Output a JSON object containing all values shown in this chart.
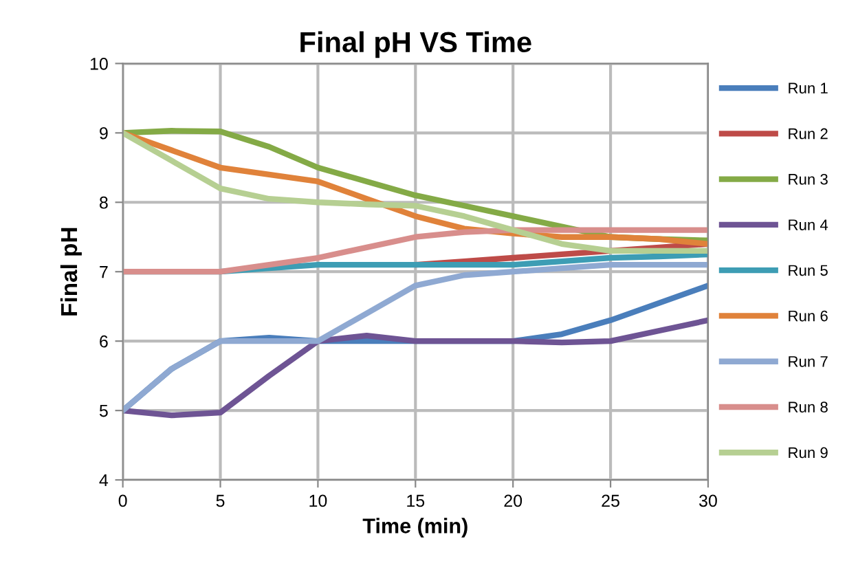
{
  "chart_data": {
    "type": "line",
    "title": "Final pH VS Time",
    "xlabel": "Time (min)",
    "ylabel": "Final pH",
    "x": [
      0,
      2.5,
      5,
      7.5,
      10,
      12.5,
      15,
      17.5,
      20,
      22.5,
      25,
      27.5,
      30
    ],
    "series": [
      {
        "name": "Run 1",
        "color": "#4a7ebb",
        "values": [
          5,
          5.6,
          6.0,
          6.05,
          6.0,
          6.0,
          6.0,
          6.0,
          6.0,
          6.1,
          6.3,
          6.55,
          6.8
        ]
      },
      {
        "name": "Run 2",
        "color": "#be4b48",
        "values": [
          null,
          null,
          null,
          null,
          null,
          null,
          7.1,
          7.15,
          7.2,
          7.25,
          7.3,
          7.35,
          7.4
        ]
      },
      {
        "name": "Run 3",
        "color": "#84aa46",
        "values": [
          9,
          9.03,
          9.02,
          8.8,
          8.5,
          8.3,
          8.1,
          7.95,
          7.8,
          7.65,
          7.5,
          7.47,
          7.45
        ]
      },
      {
        "name": "Run 4",
        "color": "#6e5494",
        "values": [
          5,
          4.93,
          4.97,
          5.5,
          6.0,
          6.08,
          6.0,
          6.0,
          6.0,
          5.98,
          6.0,
          6.15,
          6.3
        ]
      },
      {
        "name": "Run 5",
        "color": "#3d9db4",
        "values": [
          7,
          7,
          7,
          7.05,
          7.1,
          7.1,
          7.1,
          7.1,
          7.1,
          7.15,
          7.2,
          7.22,
          7.25
        ]
      },
      {
        "name": "Run 6",
        "color": "#e0823a",
        "values": [
          9,
          8.75,
          8.5,
          8.4,
          8.3,
          8.05,
          7.8,
          7.62,
          7.55,
          7.5,
          7.5,
          7.47,
          7.4
        ]
      },
      {
        "name": "Run 7",
        "color": "#8fa9d2",
        "values": [
          5,
          5.6,
          6.0,
          6.0,
          6.0,
          6.4,
          6.8,
          6.95,
          7.0,
          7.05,
          7.1,
          7.1,
          7.1
        ]
      },
      {
        "name": "Run 8",
        "color": "#d88e8c",
        "values": [
          7,
          7,
          7,
          7.1,
          7.2,
          7.35,
          7.5,
          7.57,
          7.6,
          7.6,
          7.6,
          7.6,
          7.6
        ]
      },
      {
        "name": "Run 9",
        "color": "#b6cf92",
        "values": [
          9,
          8.6,
          8.2,
          8.05,
          8.0,
          7.97,
          7.95,
          7.8,
          7.6,
          7.4,
          7.3,
          7.3,
          7.3
        ]
      }
    ],
    "xlim": [
      0,
      30
    ],
    "xticks": [
      0,
      5,
      10,
      15,
      20,
      25,
      30
    ],
    "ylim": [
      4,
      10
    ],
    "yticks": [
      4,
      5,
      6,
      7,
      8,
      9,
      10
    ],
    "grid": true,
    "legend": "right",
    "marker": "none",
    "line_style": "solid"
  }
}
